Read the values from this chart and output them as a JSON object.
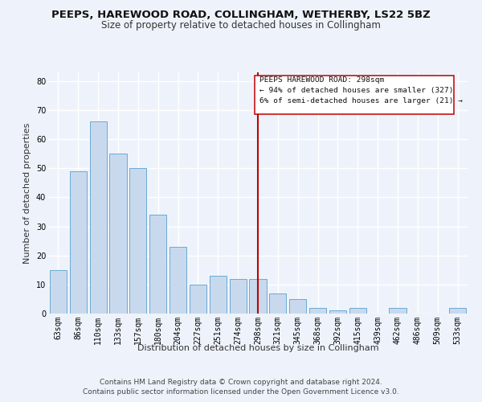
{
  "title": "PEEPS, HAREWOOD ROAD, COLLINGHAM, WETHERBY, LS22 5BZ",
  "subtitle": "Size of property relative to detached houses in Collingham",
  "xlabel": "Distribution of detached houses by size in Collingham",
  "ylabel": "Number of detached properties",
  "categories": [
    "63sqm",
    "86sqm",
    "110sqm",
    "133sqm",
    "157sqm",
    "180sqm",
    "204sqm",
    "227sqm",
    "251sqm",
    "274sqm",
    "298sqm",
    "321sqm",
    "345sqm",
    "368sqm",
    "392sqm",
    "415sqm",
    "439sqm",
    "462sqm",
    "486sqm",
    "509sqm",
    "533sqm"
  ],
  "values": [
    15,
    49,
    66,
    55,
    50,
    34,
    23,
    10,
    13,
    12,
    12,
    7,
    5,
    2,
    1,
    2,
    0,
    2,
    0,
    0,
    2
  ],
  "bar_color": "#c8d9ee",
  "bar_edge_color": "#6aaad4",
  "highlight_index": 10,
  "highlight_color": "#c00000",
  "ylim": [
    0,
    83
  ],
  "yticks": [
    0,
    10,
    20,
    30,
    40,
    50,
    60,
    70,
    80
  ],
  "annotation_title": "PEEPS HAREWOOD ROAD: 298sqm",
  "annotation_line1": "← 94% of detached houses are smaller (327)",
  "annotation_line2": "6% of semi-detached houses are larger (21) →",
  "footer1": "Contains HM Land Registry data © Crown copyright and database right 2024.",
  "footer2": "Contains public sector information licensed under the Open Government Licence v3.0.",
  "bg_color": "#eef3fb",
  "grid_color": "#ffffff",
  "title_fontsize": 9.5,
  "subtitle_fontsize": 8.5,
  "axis_label_fontsize": 8,
  "tick_fontsize": 7,
  "footer_fontsize": 6.5
}
